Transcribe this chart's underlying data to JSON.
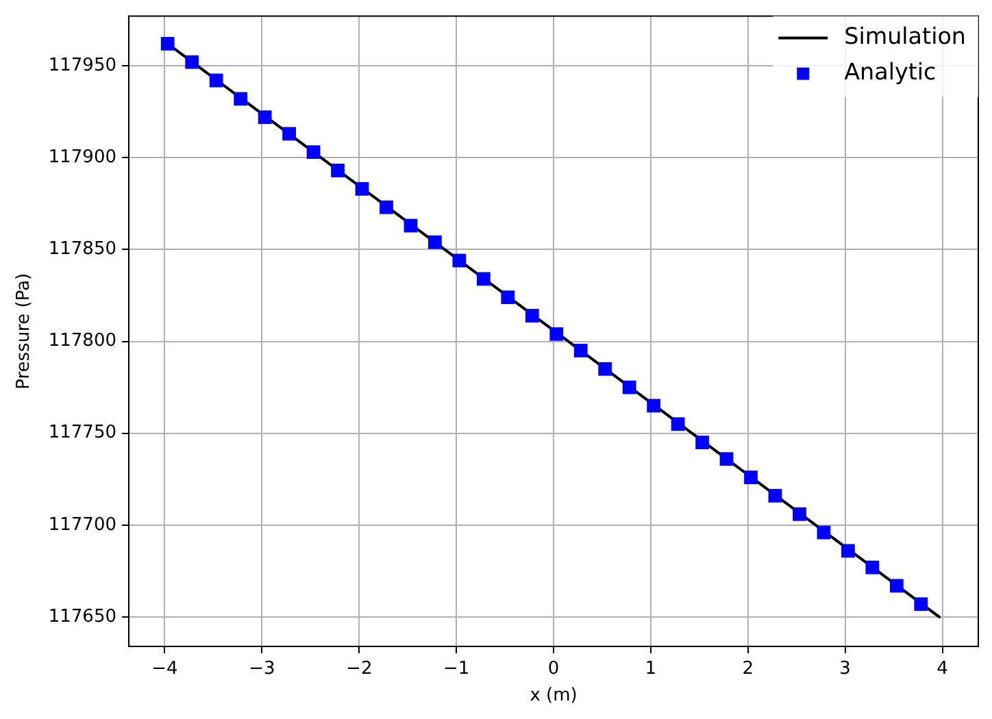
{
  "chart_data": {
    "type": "line",
    "xlabel": "x (m)",
    "ylabel": "Pressure (Pa)",
    "series": [
      {
        "name": "Simulation",
        "type": "line",
        "color": "#000000",
        "marker": "none",
        "x": [
          -3.97,
          3.97
        ],
        "values": [
          117962,
          117650
        ]
      },
      {
        "name": "Analytic",
        "type": "scatter",
        "color": "#0000ff",
        "marker": "square",
        "x": [
          -3.97,
          -3.72,
          -3.47,
          -3.22,
          -2.97,
          -2.72,
          -2.47,
          -2.22,
          -1.97,
          -1.72,
          -1.47,
          -1.22,
          -0.97,
          -0.72,
          -0.47,
          -0.22,
          0.03,
          0.28,
          0.53,
          0.78,
          1.03,
          1.28,
          1.53,
          1.78,
          2.03,
          2.28,
          2.53,
          2.78,
          3.03,
          3.28,
          3.53,
          3.78
        ],
        "values": [
          117962,
          117952,
          117942,
          117932,
          117922,
          117913,
          117903,
          117893,
          117883,
          117873,
          117863,
          117854,
          117844,
          117834,
          117824,
          117814,
          117804,
          117795,
          117785,
          117775,
          117765,
          117755,
          117745,
          117736,
          117726,
          117716,
          117706,
          117696,
          117686,
          117677,
          117667,
          117657
        ]
      }
    ],
    "xlim": [
      -4.37,
      4.37
    ],
    "ylim": [
      117634,
      117977
    ],
    "xticks": [
      {
        "value": -4,
        "label": "−4"
      },
      {
        "value": -3,
        "label": "−3"
      },
      {
        "value": -2,
        "label": "−2"
      },
      {
        "value": -1,
        "label": "−1"
      },
      0,
      1,
      2,
      3,
      4
    ],
    "yticks": [
      117650,
      117700,
      117750,
      117800,
      117850,
      117900,
      117950
    ],
    "grid": true,
    "legend": "top right"
  }
}
